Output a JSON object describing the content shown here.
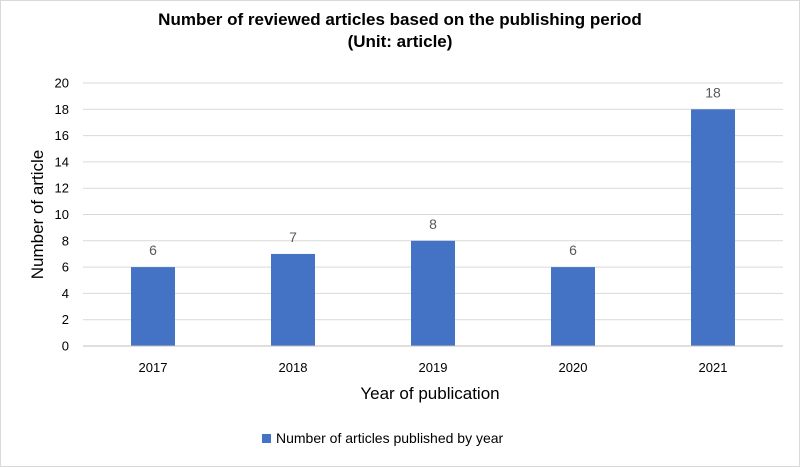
{
  "chart_data": {
    "type": "bar",
    "title": "Number of reviewed articles based on the publishing period",
    "subtitle": "(Unit: article)",
    "categories": [
      "2017",
      "2018",
      "2019",
      "2020",
      "2021"
    ],
    "series": [
      {
        "name": "Number of articles published by year",
        "values": [
          6,
          7,
          8,
          6,
          18
        ],
        "color": "#4472C4"
      }
    ],
    "xlabel": "Year of publication",
    "ylabel": "Number of article",
    "ylim": [
      0,
      20
    ],
    "yticks": [
      0,
      2,
      4,
      6,
      8,
      10,
      12,
      14,
      16,
      18,
      20
    ],
    "grid": true,
    "data_labels": true,
    "legend_position": "bottom"
  }
}
